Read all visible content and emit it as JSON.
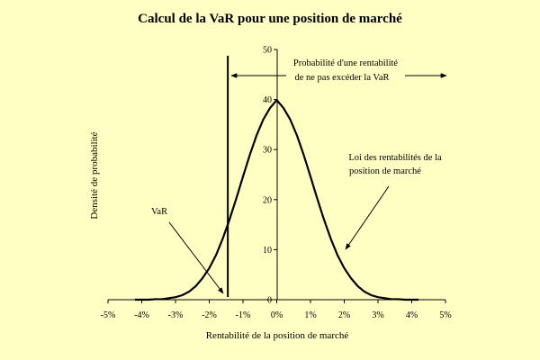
{
  "chart_data": {
    "type": "line",
    "title": "Calcul de la VaR pour une position de marché",
    "xlabel": "Rentabilité de la position de marché",
    "ylabel": "Densité de probabilité",
    "xlim": [
      -5,
      5
    ],
    "ylim": [
      0,
      50
    ],
    "x_ticks": [
      "-5%",
      "-4%",
      "-3%",
      "-2%",
      "-1%",
      "0%",
      "1%",
      "2%",
      "3%",
      "4%",
      "5%"
    ],
    "y_ticks": [
      "0",
      "10",
      "20",
      "30",
      "40",
      "50"
    ],
    "grid": false,
    "legend": "none",
    "series": [
      {
        "x": [
          -4.2,
          -4.0,
          -3.8,
          -3.6,
          -3.4,
          -3.2,
          -3.0,
          -2.8,
          -2.6,
          -2.4,
          -2.2,
          -2.0,
          -1.8,
          -1.6,
          -1.4,
          -1.2,
          -1.0,
          -0.8,
          -0.6,
          -0.4,
          -0.2,
          0.0,
          0.2,
          0.4,
          0.6,
          0.8,
          1.0,
          1.2,
          1.4,
          1.6,
          1.8,
          2.0,
          2.2,
          2.4,
          2.6,
          2.8,
          3.0,
          3.2,
          3.4,
          3.6,
          3.8,
          4.0,
          4.2
        ],
        "y": [
          0.0,
          0.0,
          0.0,
          0.1,
          0.1,
          0.3,
          0.5,
          0.9,
          1.6,
          2.7,
          4.3,
          6.3,
          8.9,
          12.2,
          16.0,
          20.2,
          24.6,
          28.9,
          32.8,
          36.0,
          38.3,
          39.9,
          38.3,
          36.0,
          32.8,
          28.9,
          24.6,
          20.2,
          16.0,
          12.2,
          8.9,
          6.3,
          4.3,
          2.7,
          1.6,
          0.9,
          0.5,
          0.3,
          0.1,
          0.1,
          0.0,
          0.0,
          0.0
        ]
      }
    ],
    "var_line_x": -1.45,
    "annotations": {
      "var_label": "VaR",
      "prob_line1": "Probabilité d'une rentabilité",
      "prob_line2": "de ne pas excéder la VaR",
      "law_line1": "Loi des rentabilités de la",
      "law_line2": "position de marché"
    },
    "colors": {
      "background": "#ffffc4",
      "ink": "#000000"
    }
  }
}
